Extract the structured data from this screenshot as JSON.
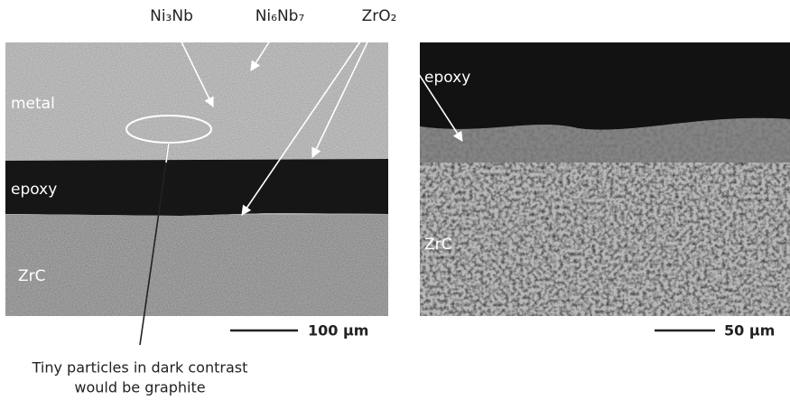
{
  "labels": {
    "ni3nb": "Ni₃Nb",
    "ni6nb7": "Ni₆Nb₇",
    "zro2": "ZrO₂"
  },
  "left_image": {
    "metal": "metal",
    "epoxy": "epoxy",
    "zrc": "ZrC",
    "scale_bar": "100 µm"
  },
  "right_image": {
    "epoxy": "epoxy",
    "zrc": "ZrC",
    "scale_bar": "50 µm"
  },
  "caption": [
    "Tiny particles in dark contrast",
    "would be graphite"
  ]
}
